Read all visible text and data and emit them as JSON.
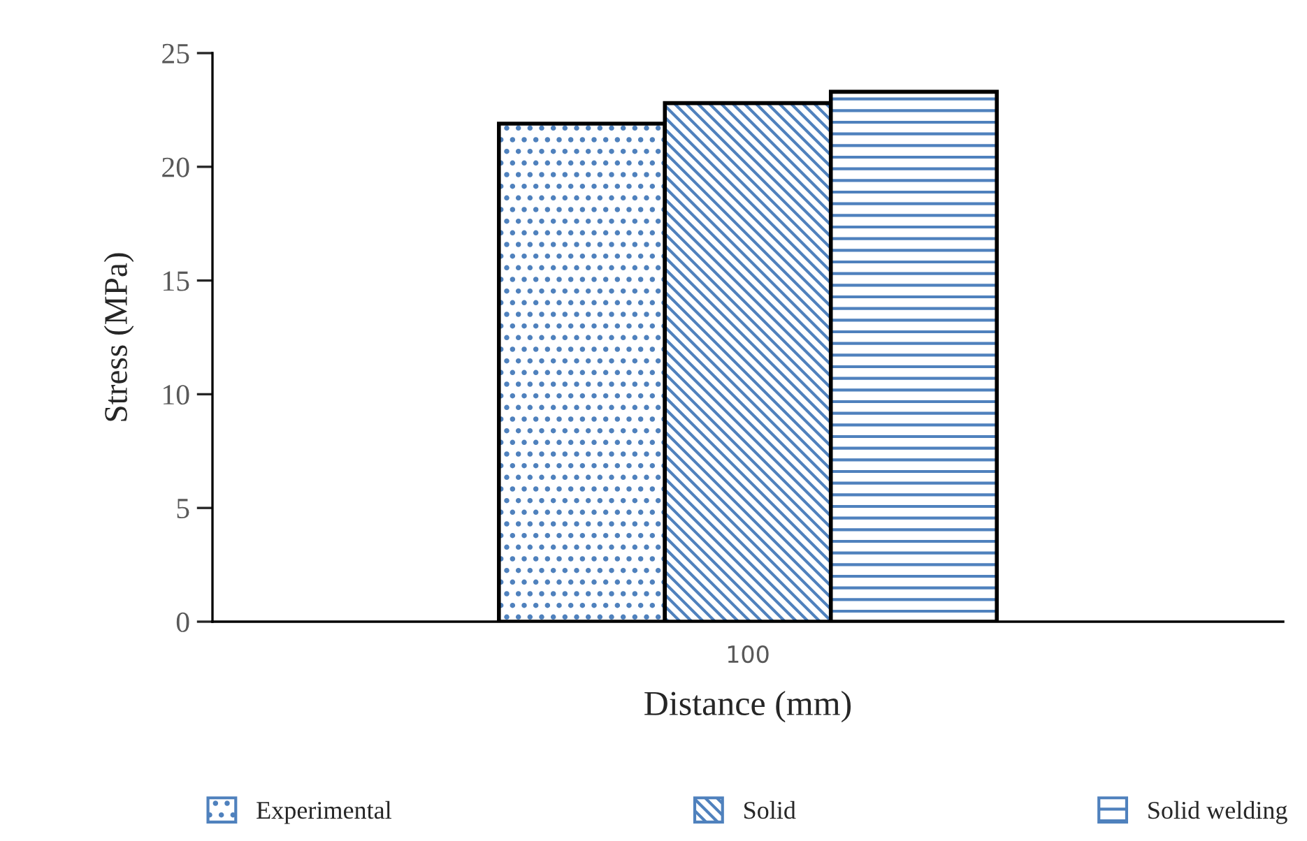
{
  "chart_data": {
    "type": "bar",
    "xlabel": "Distance (mm)",
    "ylabel": "Stress (MPa)",
    "categories": [
      "100"
    ],
    "series": [
      {
        "name": "Experimental",
        "color": "#4f81bd",
        "values": [
          21.9
        ]
      },
      {
        "name": "Solid",
        "color": "#4f81bd",
        "values": [
          22.8
        ]
      },
      {
        "name": "Solid welding",
        "color": "#4f81bd",
        "values": [
          23.3
        ]
      }
    ],
    "ylim": [
      0,
      25
    ],
    "yticks": [
      0,
      5,
      10,
      15,
      20,
      25
    ],
    "grid": false,
    "legend": "bottom"
  }
}
